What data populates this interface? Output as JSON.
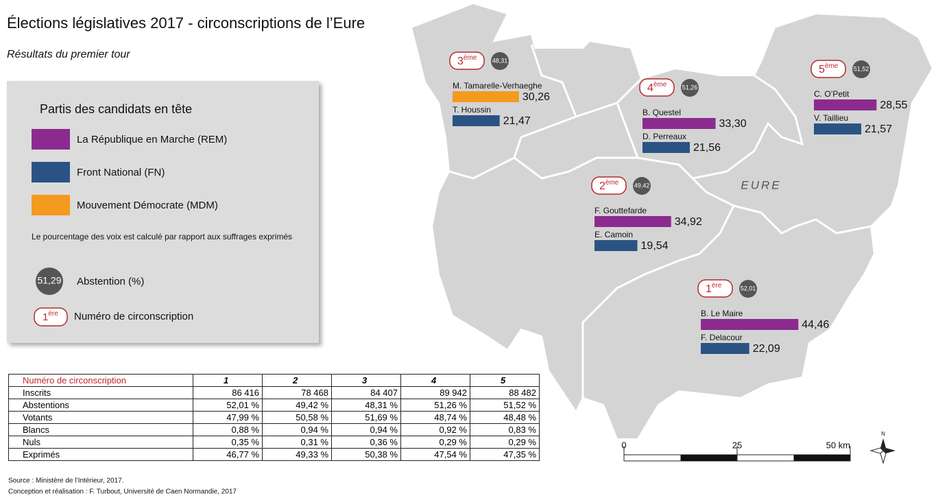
{
  "title": "Élections législatives 2017 - circonscriptions de l’Eure",
  "subtitle": "Résultats du premier tour",
  "legend": {
    "heading": "Partis des candidats en tête",
    "parties": [
      {
        "label": "La République en Marche (REM)",
        "color": "#8b2b8f"
      },
      {
        "label": "Front National (FN)",
        "color": "#2a5384"
      },
      {
        "label": "Mouvement Démocrate (MDM)",
        "color": "#f49a1e"
      }
    ],
    "note": "Le pourcentage des voix est calculé par rapport aux suffrages exprimés",
    "abstention_example": "51,29",
    "abstention_label": "Abstention (%)",
    "circ_example": {
      "number": "1",
      "suffix": "ère"
    },
    "circ_label": "Numéro de circonscription"
  },
  "map": {
    "label": "EURE",
    "districts": [
      {
        "number": "3",
        "suffix": "ème",
        "abstention": "48,31",
        "candidates": [
          {
            "name": "M. Tamarelle-Verhaeghe",
            "value": 30.26,
            "value_label": "30,26",
            "color": "#f49a1e"
          },
          {
            "name": "T. Houssin",
            "value": 21.47,
            "value_label": "21,47",
            "color": "#2a5384"
          }
        ]
      },
      {
        "number": "4",
        "suffix": "ème",
        "abstention": "51,26",
        "candidates": [
          {
            "name": "B. Questel",
            "value": 33.3,
            "value_label": "33,30",
            "color": "#8b2b8f"
          },
          {
            "name": "D. Perreaux",
            "value": 21.56,
            "value_label": "21,56",
            "color": "#2a5384"
          }
        ]
      },
      {
        "number": "5",
        "suffix": "ème",
        "abstention": "51,52",
        "candidates": [
          {
            "name": "C. O’Petit",
            "value": 28.55,
            "value_label": "28,55",
            "color": "#8b2b8f"
          },
          {
            "name": "V. Taillieu",
            "value": 21.57,
            "value_label": "21,57",
            "color": "#2a5384"
          }
        ]
      },
      {
        "number": "2",
        "suffix": "ème",
        "abstention": "49,42",
        "candidates": [
          {
            "name": "F. Gouttefarde",
            "value": 34.92,
            "value_label": "34,92",
            "color": "#8b2b8f"
          },
          {
            "name": "E. Camoin",
            "value": 19.54,
            "value_label": "19,54",
            "color": "#2a5384"
          }
        ]
      },
      {
        "number": "1",
        "suffix": "ère",
        "abstention": "52,01",
        "candidates": [
          {
            "name": "B. Le Maire",
            "value": 44.46,
            "value_label": "44,46",
            "color": "#8b2b8f"
          },
          {
            "name": "F. Delacour",
            "value": 22.09,
            "value_label": "22,09",
            "color": "#2a5384"
          }
        ]
      }
    ]
  },
  "table": {
    "header": [
      "Numéro de circonscription",
      "1",
      "2",
      "3",
      "4",
      "5"
    ],
    "rows": [
      [
        "Inscrits",
        "86 416",
        "78 468",
        "84 407",
        "89 942",
        "88 482"
      ],
      [
        "Abstentions",
        "52,01 %",
        "49,42 %",
        "48,31 %",
        "51,26 %",
        "51,52 %"
      ],
      [
        "Votants",
        "47,99 %",
        "50,58 %",
        "51,69 %",
        "48,74 %",
        "48,48 %"
      ],
      [
        "Blancs",
        "0,88 %",
        "0,94 %",
        "0,94 %",
        "0,92 %",
        "0,83 %"
      ],
      [
        "Nuls",
        "0,35 %",
        "0,31 %",
        "0,36 %",
        "0,29 %",
        "0,29 %"
      ],
      [
        "Exprimés",
        "46,77 %",
        "49,33 %",
        "50,38 %",
        "47,54 %",
        "47,35 %"
      ]
    ]
  },
  "scale": {
    "ticks": [
      0,
      25,
      {
        "value": 50,
        "label": "50 km"
      }
    ]
  },
  "north": "N",
  "source": [
    "Source : Ministère de l’Intérieur, 2017.",
    "Conception et réalisation : F. Turbout, Université de Caen Normandie, 2017"
  ]
}
